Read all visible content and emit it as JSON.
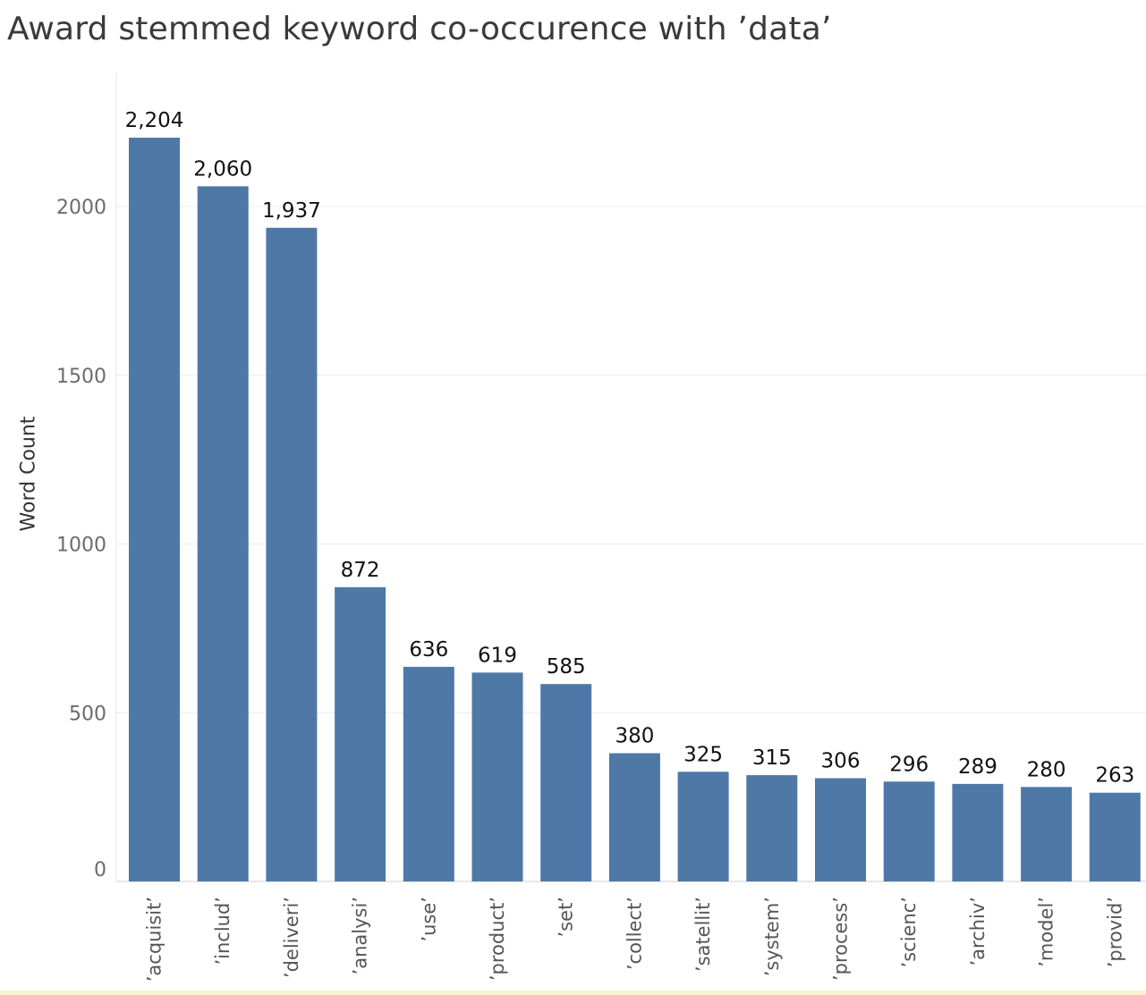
{
  "chart_data": {
    "type": "bar",
    "title": "Award stemmed keyword co-occurence with ’data’",
    "xlabel": "",
    "ylabel": "Word Count",
    "categories": [
      "’acquisit’",
      "’includ’",
      "’deliveri’",
      "’analysi’",
      "’use’",
      "’product’",
      "’set’",
      "’collect’",
      "’satellit’",
      "’system’",
      "’process’",
      "’scienc’",
      "’archiv’",
      "’model’",
      "’provid’"
    ],
    "values": [
      2204,
      2060,
      1937,
      872,
      636,
      619,
      585,
      380,
      325,
      315,
      306,
      296,
      289,
      280,
      263
    ],
    "value_labels": [
      "2,204",
      "2,060",
      "1,937",
      "872",
      "636",
      "619",
      "585",
      "380",
      "325",
      "315",
      "306",
      "296",
      "289",
      "280",
      "263"
    ],
    "yticks": [
      0,
      500,
      1000,
      1500,
      2000
    ],
    "ylim": [
      0,
      2204
    ],
    "grid": true,
    "legend": "none",
    "bar_color": "#4e79a7"
  }
}
